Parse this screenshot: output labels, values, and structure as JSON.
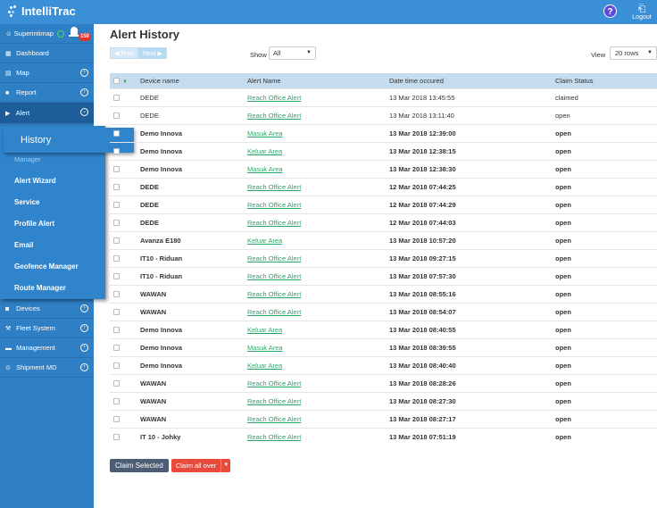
{
  "app": {
    "logo_text": "IntelliTrac",
    "help_label": "?",
    "logout_label": "Logout"
  },
  "sidebar": {
    "user": "Superintimap",
    "badge": "150",
    "items_top": [
      {
        "label": "Dashboard",
        "icon": "grid-icon"
      },
      {
        "label": "Map",
        "icon": "map-icon"
      },
      {
        "label": "Report",
        "icon": "report-icon"
      },
      {
        "label": "Alert",
        "icon": "alert-icon"
      }
    ],
    "items_bottom": [
      {
        "label": "Devices",
        "icon": "car-icon"
      },
      {
        "label": "Fleet System",
        "icon": "wrench-icon"
      },
      {
        "label": "Management",
        "icon": "briefcase-icon"
      },
      {
        "label": "Shipment MD",
        "icon": "shipment-icon"
      }
    ],
    "alert_submenu": {
      "active": "History",
      "partial": "Manager",
      "items": [
        "Alert Wizard",
        "Service",
        "Profile Alert",
        "Email",
        "Geofence Manager",
        "Route Manager"
      ]
    }
  },
  "main": {
    "title": "Alert History",
    "prev_label": "Prev",
    "next_label": "Next",
    "show_label": "Show",
    "show_value": "All",
    "view_label": "View",
    "view_value": "20 rows",
    "columns": [
      "Device name",
      "Alert Name",
      "Date time occured",
      "Claim Status"
    ],
    "rows": [
      {
        "device": "DEDE",
        "alert": "Reach Office Alert",
        "datetime": "13 Mar 2018 13:45:55",
        "status": "claimed",
        "bold": false
      },
      {
        "device": "DEDE",
        "alert": "Reach Office Alert",
        "datetime": "13 Mar 2018 13:11:40",
        "status": "open",
        "bold": false
      },
      {
        "device": "Demo Innova",
        "alert": "Masuk Area",
        "datetime": "13 Mar 2018 12:39:00",
        "status": "open",
        "bold": true
      },
      {
        "device": "Demo Innova",
        "alert": "Keluar Area",
        "datetime": "13 Mar 2018 12:38:15",
        "status": "open",
        "bold": true
      },
      {
        "device": "Demo Innova",
        "alert": "Masuk Area",
        "datetime": "13 Mar 2018 12:38:30",
        "status": "open",
        "bold": true
      },
      {
        "device": "DEDE",
        "alert": "Reach Office Alert",
        "datetime": "12 Mar 2018 07:44:25",
        "status": "open",
        "bold": true
      },
      {
        "device": "DEDE",
        "alert": "Reach Office Alert",
        "datetime": "12 Mar 2018 07:44:29",
        "status": "open",
        "bold": true
      },
      {
        "device": "DEDE",
        "alert": "Reach Office Alert",
        "datetime": "12 Mar 2018 07:44:03",
        "status": "open",
        "bold": true
      },
      {
        "device": "Avanza E180",
        "alert": "Keluar Area",
        "datetime": "13 Mar 2018 10:57:20",
        "status": "open",
        "bold": true
      },
      {
        "device": "IT10 - Riduan",
        "alert": "Reach Office Alert",
        "datetime": "13 Mar 2018 09:27:15",
        "status": "open",
        "bold": true
      },
      {
        "device": "IT10 - Riduan",
        "alert": "Reach Office Alert",
        "datetime": "13 Mar 2018 07:57:30",
        "status": "open",
        "bold": true
      },
      {
        "device": "WAWAN",
        "alert": "Reach Office Alert",
        "datetime": "13 Mar 2018 08:55:16",
        "status": "open",
        "bold": true
      },
      {
        "device": "WAWAN",
        "alert": "Reach Office Alert",
        "datetime": "13 Mar 2018 08:54:07",
        "status": "open",
        "bold": true
      },
      {
        "device": "Demo Innova",
        "alert": "Keluar Area",
        "datetime": "13 Mar 2018 08:40:55",
        "status": "open",
        "bold": true
      },
      {
        "device": "Demo Innova",
        "alert": "Masuk Area",
        "datetime": "13 Mar 2018 08:39:55",
        "status": "open",
        "bold": true
      },
      {
        "device": "Demo Innova",
        "alert": "Keluar Area",
        "datetime": "13 Mar 2018 08:40:40",
        "status": "open",
        "bold": true
      },
      {
        "device": "WAWAN",
        "alert": "Reach Office Alert",
        "datetime": "13 Mar 2018 08:28:26",
        "status": "open",
        "bold": true
      },
      {
        "device": "WAWAN",
        "alert": "Reach Office Alert",
        "datetime": "13 Mar 2018 08:27:30",
        "status": "open",
        "bold": true
      },
      {
        "device": "WAWAN",
        "alert": "Reach Office Alert",
        "datetime": "13 Mar 2018 08:27:17",
        "status": "open",
        "bold": true
      },
      {
        "device": "IT 10 - Johky",
        "alert": "Reach Office Alert",
        "datetime": "13 Mar 2018 07:51:19",
        "status": "open",
        "bold": true
      }
    ],
    "claim_selected_label": "Claim Selected",
    "claim_all_label": "Claim all over"
  }
}
